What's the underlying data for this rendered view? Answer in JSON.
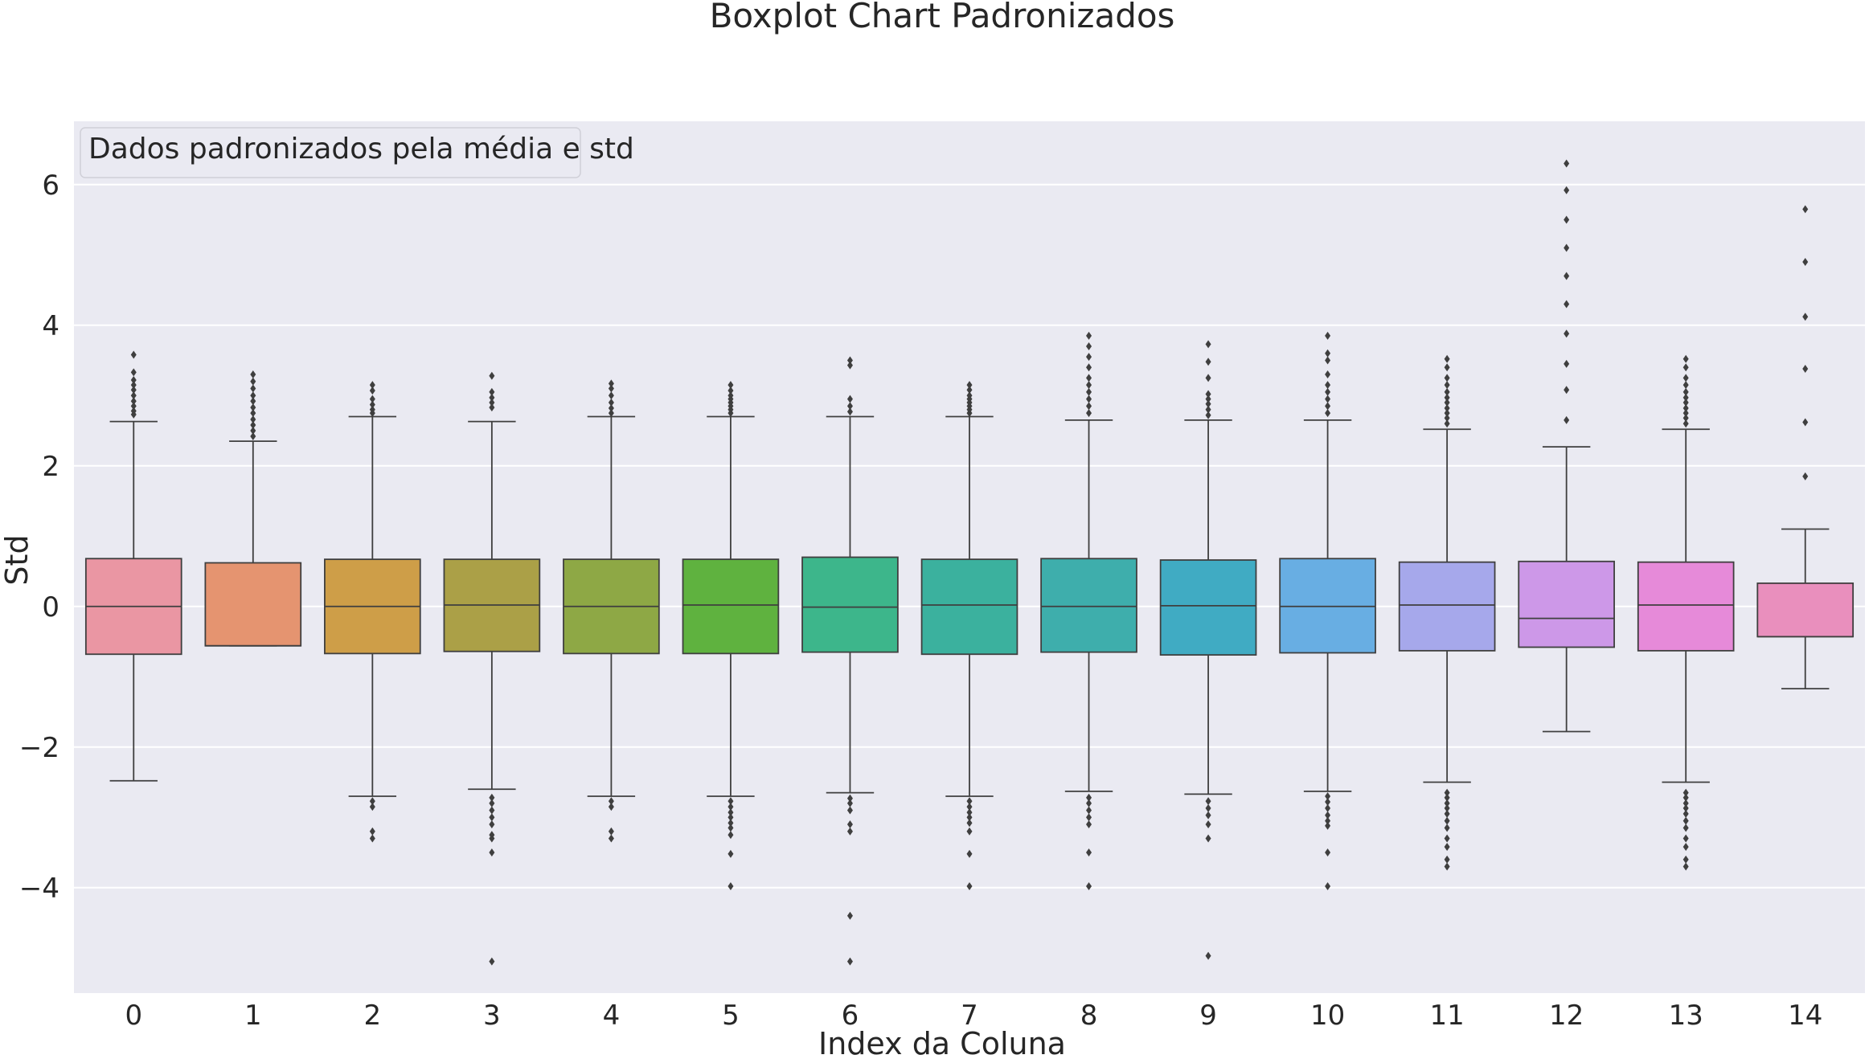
{
  "chart_data": {
    "type": "boxplot",
    "title": "Boxplot Chart Padronizados",
    "xlabel": "Index da Coluna",
    "ylabel": "Std",
    "ylim": [
      -5.5,
      6.9
    ],
    "yticks": [
      -4,
      -2,
      0,
      2,
      4,
      6
    ],
    "ytick_labels": [
      "−4",
      "−2",
      "0",
      "2",
      "4",
      "6"
    ],
    "grid": true,
    "legend": {
      "text": "Dados padronizados pela média e std",
      "placement": "top-left"
    },
    "categories": [
      "0",
      "1",
      "2",
      "3",
      "4",
      "5",
      "6",
      "7",
      "8",
      "9",
      "10",
      "11",
      "12",
      "13",
      "14"
    ],
    "colors": [
      "#ea96a3",
      "#e59470",
      "#ce9e48",
      "#aba047",
      "#8ea845",
      "#5fb23f",
      "#3db68b",
      "#3bb19e",
      "#3eaeac",
      "#40abc3",
      "#68aee3",
      "#a6a8eb",
      "#cd98e8",
      "#e68ad9",
      "#e98fbd"
    ],
    "boxes": [
      {
        "q1": -0.68,
        "median": 0.0,
        "q3": 0.68,
        "whisker_low": -2.48,
        "whisker_high": 2.63,
        "outliers": [
          2.73,
          2.78,
          2.85,
          2.92,
          3.0,
          3.08,
          3.15,
          3.22,
          3.33,
          3.58
        ]
      },
      {
        "q1": -0.56,
        "median": -0.56,
        "q3": 0.62,
        "whisker_low": -0.56,
        "whisker_high": 2.35,
        "outliers": [
          2.42,
          2.5,
          2.58,
          2.66,
          2.75,
          2.83,
          2.92,
          3.0,
          3.1,
          3.2,
          3.3
        ]
      },
      {
        "q1": -0.67,
        "median": 0.0,
        "q3": 0.67,
        "whisker_low": -2.7,
        "whisker_high": 2.7,
        "outliers": [
          2.75,
          2.8,
          2.87,
          2.95,
          3.07,
          3.15,
          -2.77,
          -2.85,
          -3.2,
          -3.3
        ]
      },
      {
        "q1": -0.64,
        "median": 0.02,
        "q3": 0.67,
        "whisker_low": -2.6,
        "whisker_high": 2.63,
        "outliers": [
          2.83,
          2.9,
          2.97,
          3.05,
          3.28,
          -2.72,
          -2.8,
          -2.9,
          -3.0,
          -3.1,
          -3.25,
          -3.3,
          -3.5,
          -5.05
        ]
      },
      {
        "q1": -0.67,
        "median": 0.0,
        "q3": 0.67,
        "whisker_low": -2.7,
        "whisker_high": 2.7,
        "outliers": [
          2.75,
          2.82,
          2.9,
          3.0,
          3.1,
          3.17,
          -2.77,
          -2.85,
          -3.2,
          -3.3
        ]
      },
      {
        "q1": -0.67,
        "median": 0.02,
        "q3": 0.67,
        "whisker_low": -2.7,
        "whisker_high": 2.7,
        "outliers": [
          2.75,
          2.8,
          2.85,
          2.9,
          2.95,
          3.0,
          3.07,
          3.15,
          -2.77,
          -2.85,
          -2.93,
          -3.0,
          -3.08,
          -3.15,
          -3.25,
          -3.52,
          -3.98
        ]
      },
      {
        "q1": -0.65,
        "median": -0.01,
        "q3": 0.7,
        "whisker_low": -2.65,
        "whisker_high": 2.7,
        "outliers": [
          2.77,
          2.85,
          2.95,
          3.43,
          3.5,
          -2.73,
          -2.8,
          -2.9,
          -3.1,
          -3.2,
          -4.4,
          -5.05
        ]
      },
      {
        "q1": -0.68,
        "median": 0.02,
        "q3": 0.67,
        "whisker_low": -2.7,
        "whisker_high": 2.7,
        "outliers": [
          2.75,
          2.8,
          2.85,
          2.9,
          2.95,
          3.0,
          3.08,
          3.15,
          -2.77,
          -2.85,
          -2.93,
          -3.0,
          -3.08,
          -3.2,
          -3.52,
          -3.98
        ]
      },
      {
        "q1": -0.65,
        "median": 0.0,
        "q3": 0.68,
        "whisker_low": -2.63,
        "whisker_high": 2.65,
        "outliers": [
          2.75,
          2.85,
          2.95,
          3.05,
          3.15,
          3.25,
          3.4,
          3.55,
          3.7,
          3.85,
          -2.72,
          -2.8,
          -2.9,
          -3.0,
          -3.1,
          -3.5,
          -3.98
        ]
      },
      {
        "q1": -0.69,
        "median": 0.01,
        "q3": 0.66,
        "whisker_low": -2.67,
        "whisker_high": 2.65,
        "outliers": [
          2.72,
          2.8,
          2.88,
          2.95,
          3.02,
          3.25,
          3.48,
          3.73,
          -2.77,
          -2.87,
          -2.97,
          -3.1,
          -3.3,
          -4.97
        ]
      },
      {
        "q1": -0.66,
        "median": 0.0,
        "q3": 0.68,
        "whisker_low": -2.63,
        "whisker_high": 2.65,
        "outliers": [
          2.75,
          2.85,
          2.95,
          3.05,
          3.15,
          3.3,
          3.5,
          3.6,
          3.85,
          -2.7,
          -2.78,
          -2.87,
          -2.97,
          -3.05,
          -3.12,
          -3.5,
          -3.98
        ]
      },
      {
        "q1": -0.63,
        "median": 0.02,
        "q3": 0.63,
        "whisker_low": -2.5,
        "whisker_high": 2.52,
        "outliers": [
          2.6,
          2.68,
          2.75,
          2.82,
          2.9,
          2.97,
          3.05,
          3.15,
          3.25,
          3.4,
          3.52,
          -2.65,
          -2.72,
          -2.8,
          -2.87,
          -2.95,
          -3.05,
          -3.15,
          -3.3,
          -3.42,
          -3.6,
          -3.7
        ]
      },
      {
        "q1": -0.58,
        "median": -0.17,
        "q3": 0.64,
        "whisker_low": -1.78,
        "whisker_high": 2.27,
        "outliers": [
          2.65,
          3.08,
          3.45,
          3.88,
          4.3,
          4.7,
          5.1,
          5.5,
          5.92,
          6.3
        ]
      },
      {
        "q1": -0.63,
        "median": 0.02,
        "q3": 0.63,
        "whisker_low": -2.5,
        "whisker_high": 2.52,
        "outliers": [
          2.6,
          2.68,
          2.75,
          2.82,
          2.9,
          2.97,
          3.05,
          3.15,
          3.25,
          3.4,
          3.52,
          -2.65,
          -2.72,
          -2.8,
          -2.87,
          -2.95,
          -3.05,
          -3.15,
          -3.3,
          -3.42,
          -3.6,
          -3.7
        ]
      },
      {
        "q1": -0.43,
        "median": -0.43,
        "q3": 0.33,
        "whisker_low": -1.17,
        "whisker_high": 1.1,
        "outliers": [
          1.85,
          2.62,
          3.38,
          4.12,
          4.9,
          5.65
        ]
      }
    ]
  }
}
